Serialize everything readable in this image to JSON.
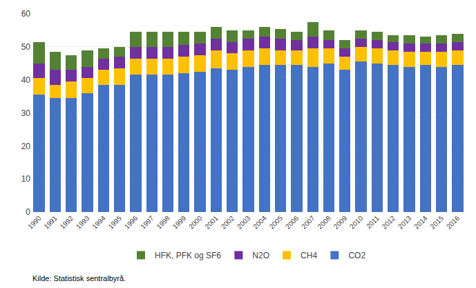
{
  "chart_data": {
    "type": "bar",
    "stacked": true,
    "categories": [
      "1990",
      "1991",
      "1992",
      "1993",
      "1994",
      "1995",
      "1996",
      "1997",
      "1998",
      "1999",
      "2000",
      "2001",
      "2002",
      "2003",
      "2004",
      "2005",
      "2006",
      "2007",
      "2008",
      "2009",
      "2010",
      "2011",
      "2012",
      "2013",
      "2014",
      "2015",
      "2016"
    ],
    "series": [
      {
        "name": "CO2",
        "color": "#4472c4",
        "values": [
          35.5,
          34.5,
          34.5,
          36.0,
          38.5,
          38.5,
          41.5,
          41.5,
          41.5,
          42.0,
          42.5,
          43.5,
          43.0,
          44.0,
          44.5,
          44.5,
          44.5,
          44.0,
          45.0,
          43.0,
          45.5,
          45.0,
          44.5,
          44.0,
          44.5,
          44.0,
          44.5
        ]
      },
      {
        "name": "CH4",
        "color": "#ffc000",
        "values": [
          5.0,
          4.0,
          5.0,
          4.5,
          4.5,
          5.0,
          5.0,
          5.0,
          5.0,
          5.0,
          5.0,
          5.5,
          5.0,
          5.0,
          5.0,
          4.5,
          4.5,
          5.5,
          4.5,
          4.0,
          4.5,
          4.5,
          4.5,
          4.5,
          4.0,
          4.5,
          4.5
        ]
      },
      {
        "name": "N2O",
        "color": "#7030a0",
        "values": [
          4.5,
          4.5,
          3.5,
          3.5,
          3.5,
          3.5,
          3.5,
          3.5,
          3.5,
          3.5,
          3.5,
          3.5,
          3.5,
          3.5,
          3.5,
          3.5,
          3.0,
          3.5,
          2.5,
          2.5,
          2.5,
          2.5,
          2.5,
          2.5,
          2.5,
          2.5,
          2.5
        ]
      },
      {
        "name": "HFK, PFK og SF6",
        "color": "#548235",
        "values": [
          6.5,
          5.5,
          4.5,
          5.0,
          3.0,
          3.0,
          4.5,
          4.5,
          4.5,
          4.0,
          3.5,
          3.5,
          3.5,
          2.5,
          3.0,
          3.0,
          2.5,
          4.5,
          3.0,
          2.5,
          2.5,
          2.5,
          2.0,
          2.5,
          2.0,
          2.5,
          2.5
        ]
      }
    ],
    "ylim": [
      0,
      60
    ],
    "yticks": [
      0,
      10,
      20,
      30,
      40,
      50,
      60
    ],
    "grid": true,
    "legend": "bottom",
    "annotations": [
      "Kilde: Statistisk sentralbyrå."
    ]
  }
}
